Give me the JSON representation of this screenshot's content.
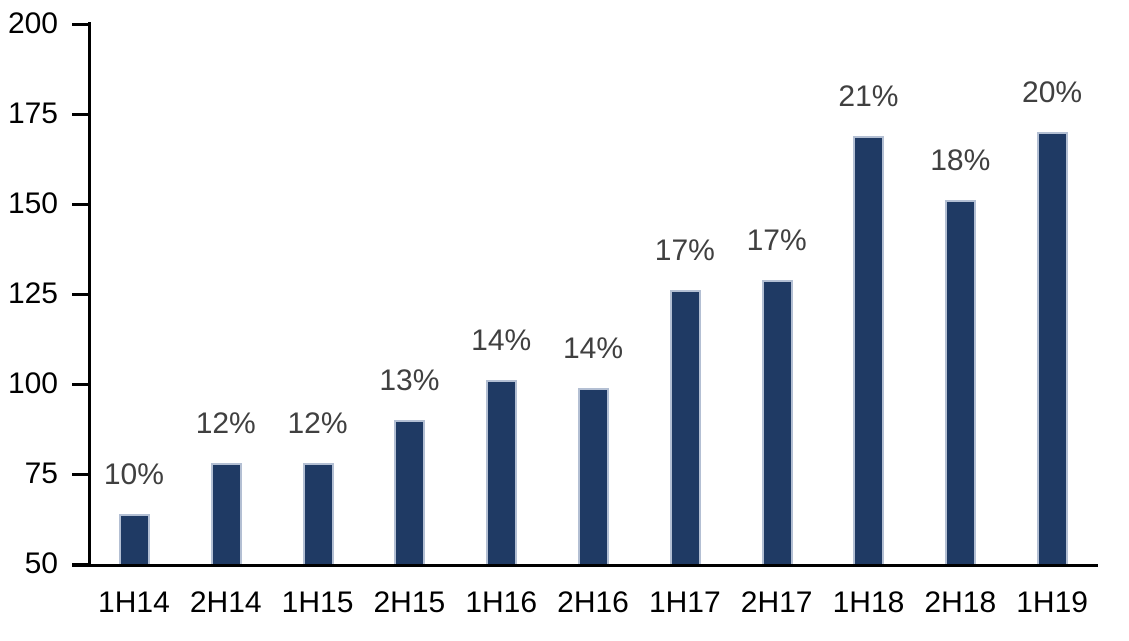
{
  "chart_data": {
    "type": "bar",
    "title": "",
    "xlabel": "",
    "ylabel": "",
    "categories": [
      "1H14",
      "2H14",
      "1H15",
      "2H15",
      "1H16",
      "2H16",
      "1H17",
      "2H17",
      "1H18",
      "2H18",
      "1H19"
    ],
    "values": [
      64,
      78,
      78,
      90,
      101,
      99,
      126,
      129,
      169,
      151,
      170
    ],
    "bar_labels": [
      "10%",
      "12%",
      "12%",
      "13%",
      "14%",
      "14%",
      "17%",
      "17%",
      "21%",
      "18%",
      "20%"
    ],
    "ylim": [
      50,
      200
    ],
    "yticks": [
      50,
      75,
      100,
      125,
      150,
      175,
      200
    ],
    "grid": false,
    "legend_position": "none",
    "colors": {
      "bar_fill": "#1f3a64",
      "bar_border": "#b3bfd3",
      "bar_label_text": "#404040",
      "axis_text": "#000000",
      "axis_line": "#000000",
      "background": "#ffffff"
    }
  }
}
